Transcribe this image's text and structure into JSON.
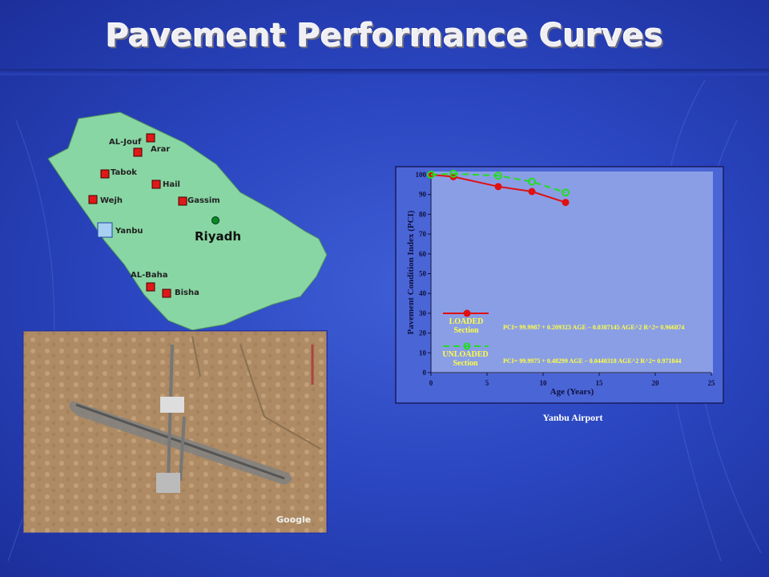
{
  "title": "Pavement Performance Curves",
  "map": {
    "cities": [
      "AL-Jouf",
      "Arar",
      "Tabok",
      "Hail",
      "Wejh",
      "Gassim",
      "Yanbu",
      "AL-Baha",
      "Bisha"
    ],
    "capital": "Riyadh"
  },
  "chart_data": {
    "type": "line",
    "y_label": "Pavement Condition Index (PCI)",
    "x_label": "Age (Years)",
    "x": [
      0,
      2,
      6,
      9,
      12
    ],
    "series": [
      {
        "name": "LOADED Section",
        "color": "#e01010",
        "values": [
          100,
          99,
          94,
          91.5,
          86
        ]
      },
      {
        "name": "UNLOADED Section",
        "color": "#22dd22",
        "values": [
          100,
          100.5,
          99.5,
          96.5,
          91
        ]
      }
    ],
    "annotations": [
      "PCI= 99.9987 + 0.209323 AGE – 0.0387145 AGE^2   R^2= 0.966874",
      "PCI= 99.9975 + 0.48299 AGE – 0.0440318 AGE^2   R^2= 0.971844"
    ],
    "xlim": [
      0,
      25
    ],
    "xticks": [
      0,
      5,
      10,
      15,
      20,
      25
    ],
    "ylim": [
      0,
      100
    ],
    "yticks": [
      0,
      10,
      20,
      30,
      40,
      50,
      60,
      70,
      80,
      90,
      100
    ]
  },
  "caption": "Yanbu Airport"
}
